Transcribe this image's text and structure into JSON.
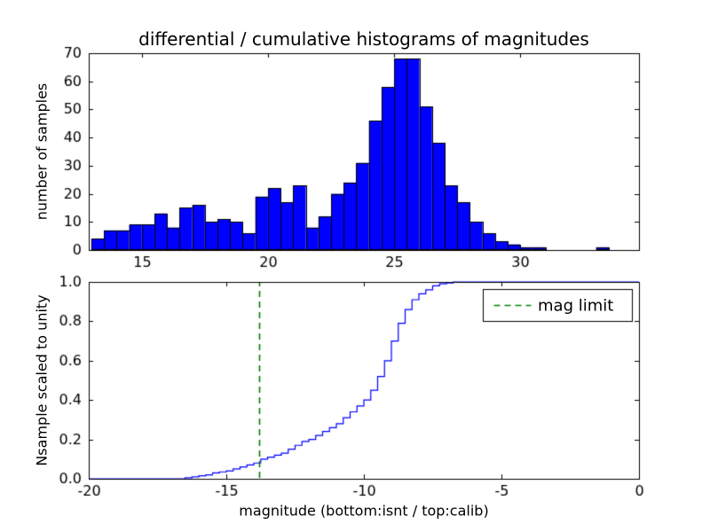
{
  "figure": {
    "background": "#ffffff"
  },
  "chart_data": [
    {
      "type": "bar",
      "subtype": "histogram",
      "title": "differential / cumulative histograms of magnitudes",
      "ylabel": "number of samples",
      "bar_color": "#0000ff",
      "bar_edge_color": "#000000",
      "bin_start": 13.0,
      "bin_width": 0.5,
      "values": [
        4,
        7,
        7,
        9,
        9,
        13,
        8,
        15,
        16,
        10,
        11,
        10,
        6,
        19,
        22,
        17,
        23,
        8,
        12,
        20,
        24,
        31,
        46,
        58,
        68,
        68,
        51,
        38,
        23,
        17,
        10,
        6,
        3,
        2,
        1,
        1,
        0,
        0,
        0,
        0,
        1
      ],
      "xlim": [
        12.9,
        34.7
      ],
      "ylim": [
        0,
        70
      ],
      "xticks": [
        15,
        20,
        25,
        30
      ],
      "xticklabels": [
        "15",
        "20",
        "25",
        "30"
      ],
      "yticks": [
        0,
        10,
        20,
        30,
        40,
        50,
        60,
        70
      ],
      "yticklabels": [
        "0",
        "10",
        "20",
        "30",
        "40",
        "50",
        "60",
        "70"
      ],
      "grid": false
    },
    {
      "type": "line",
      "subtype": "cumulative-step",
      "ylabel": "Nsample scaled to unity",
      "xlabel": "magnitude (bottom:isnt / top:calib)",
      "line_color": "#0000ff",
      "step_start": -16.5,
      "step_width": 0.25,
      "cumulative": [
        0.005,
        0.01,
        0.015,
        0.02,
        0.03,
        0.035,
        0.04,
        0.05,
        0.06,
        0.07,
        0.08,
        0.1,
        0.11,
        0.12,
        0.13,
        0.15,
        0.17,
        0.19,
        0.2,
        0.22,
        0.24,
        0.26,
        0.28,
        0.31,
        0.34,
        0.37,
        0.4,
        0.45,
        0.52,
        0.6,
        0.7,
        0.79,
        0.86,
        0.91,
        0.94,
        0.96,
        0.98,
        0.99,
        0.995,
        1.0
      ],
      "xlim": [
        -20,
        0
      ],
      "ylim": [
        0,
        1
      ],
      "xticks": [
        -20,
        -15,
        -10,
        -5,
        0
      ],
      "xticklabels": [
        "-20",
        "-15",
        "-10",
        "-5",
        "0"
      ],
      "yticks": [
        0,
        0.2,
        0.4,
        0.6,
        0.8,
        1.0
      ],
      "yticklabels": [
        "0.0",
        "0.2",
        "0.4",
        "0.6",
        "0.8",
        "1.0"
      ],
      "vline": {
        "x": -13.8,
        "color": "#008000",
        "style": "dashed"
      },
      "legend": {
        "label": "mag limit",
        "position": "upper right"
      },
      "grid": false
    }
  ]
}
